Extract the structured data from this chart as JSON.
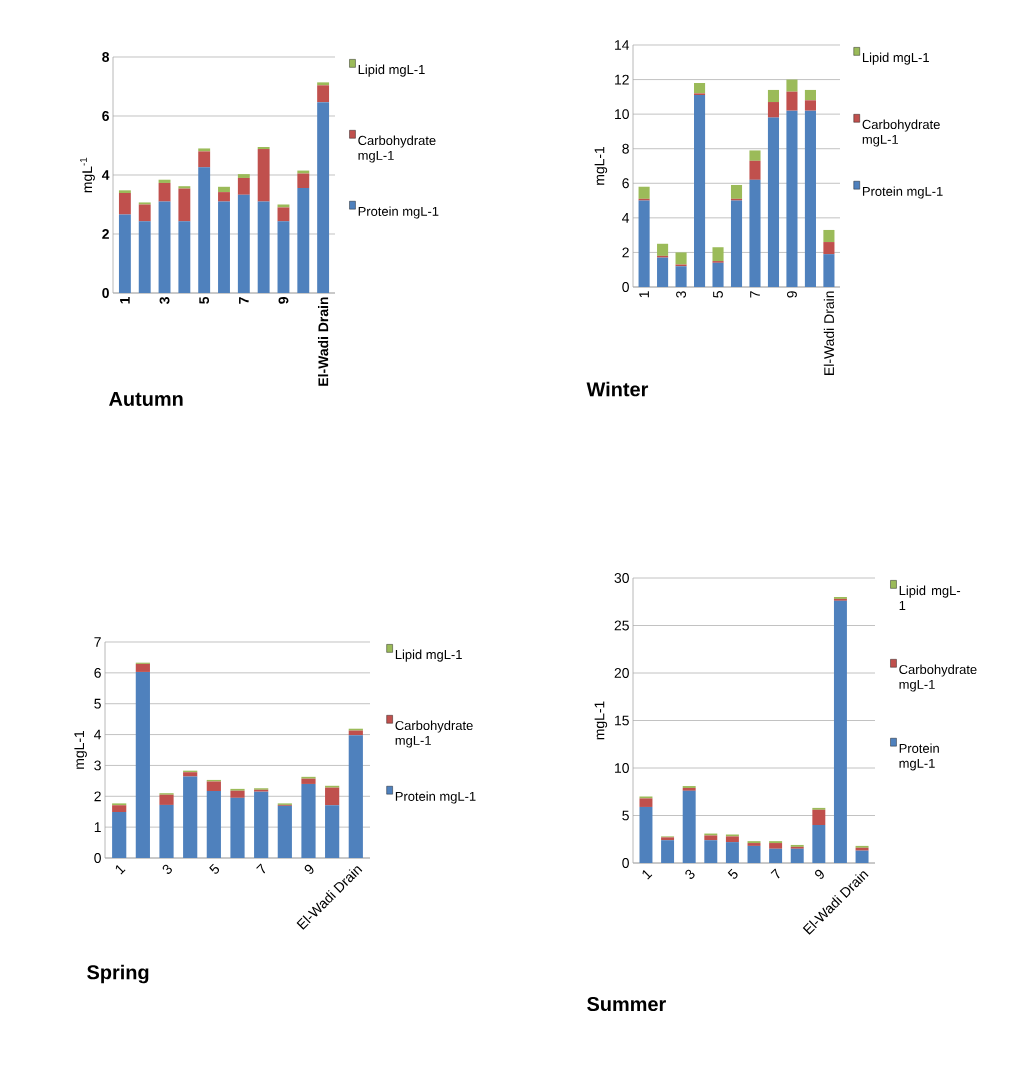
{
  "chart_data": [
    {
      "type": "bar",
      "stacked": true,
      "title": "Autumn",
      "ylabel": "mgL$^{-1}$",
      "categories": [
        "1",
        null,
        "3",
        null,
        "5",
        null,
        "7",
        null,
        "9",
        null,
        "El-Wadi Drain"
      ],
      "ylim": [
        0,
        8
      ],
      "yticks": [
        0,
        2,
        4,
        6,
        8
      ],
      "grid": "y",
      "legend": "right",
      "series": [
        {
          "name": "Protein mgL-1",
          "color": "#4f81bd",
          "values": [
            2.66,
            2.43,
            3.1,
            2.43,
            4.26,
            3.1,
            3.33,
            3.1,
            2.43,
            3.56,
            6.47
          ]
        },
        {
          "name": "Carbohydrate mgL-1",
          "color": "#c0504d",
          "values": [
            0.73,
            0.57,
            0.63,
            1.11,
            0.54,
            0.32,
            0.57,
            1.78,
            0.47,
            0.49,
            0.57
          ]
        },
        {
          "name": "Lipid mgL-1",
          "color": "#9bbb59",
          "values": [
            0.09,
            0.07,
            0.11,
            0.08,
            0.1,
            0.18,
            0.13,
            0.07,
            0.1,
            0.1,
            0.1
          ]
        }
      ]
    },
    {
      "type": "bar",
      "stacked": true,
      "title": "Winter",
      "ylabel": "mgL-1",
      "categories": [
        "1",
        null,
        "3",
        null,
        "5",
        null,
        "7",
        null,
        "9",
        null,
        "El-Wadi Drain"
      ],
      "ylim": [
        0,
        14
      ],
      "yticks": [
        0,
        2,
        4,
        6,
        8,
        10,
        12,
        14
      ],
      "grid": "y",
      "legend": "right",
      "series": [
        {
          "name": "Protein mgL-1",
          "color": "#4f81bd",
          "values": [
            5.0,
            1.7,
            1.2,
            11.1,
            1.4,
            5.0,
            6.2,
            9.8,
            10.2,
            10.2,
            1.9
          ]
        },
        {
          "name": "Carbohydrate mgL-1",
          "color": "#c0504d",
          "values": [
            0.1,
            0.1,
            0.1,
            0.1,
            0.1,
            0.1,
            1.1,
            0.9,
            1.1,
            0.6,
            0.7
          ]
        },
        {
          "name": "Lipid mgL-1",
          "color": "#9bbb59",
          "values": [
            0.7,
            0.7,
            0.7,
            0.6,
            0.8,
            0.8,
            0.6,
            0.7,
            0.7,
            0.6,
            0.7
          ]
        }
      ]
    },
    {
      "type": "bar",
      "stacked": true,
      "title": "Spring",
      "ylabel": "mgL-1",
      "categories": [
        "1",
        null,
        "3",
        null,
        "5",
        null,
        "7",
        null,
        "9",
        null,
        "El-Wadi Drain"
      ],
      "ylim": [
        0,
        7
      ],
      "yticks": [
        0,
        1,
        2,
        3,
        4,
        5,
        6,
        7
      ],
      "grid": "y",
      "legend": "right",
      "series": [
        {
          "name": "Protein mgL-1",
          "color": "#4f81bd",
          "values": [
            1.49,
            6.03,
            1.72,
            2.64,
            2.17,
            1.95,
            2.15,
            1.69,
            2.4,
            1.71,
            3.98
          ]
        },
        {
          "name": "Carbohydrate mgL-1",
          "color": "#c0504d",
          "values": [
            0.22,
            0.26,
            0.33,
            0.14,
            0.31,
            0.23,
            0.06,
            0.03,
            0.17,
            0.57,
            0.15
          ]
        },
        {
          "name": "Lipid mgL-1",
          "color": "#9bbb59",
          "values": [
            0.06,
            0.04,
            0.05,
            0.05,
            0.05,
            0.06,
            0.05,
            0.05,
            0.06,
            0.06,
            0.06
          ]
        }
      ]
    },
    {
      "type": "bar",
      "stacked": true,
      "title": "Summer",
      "ylabel": "mgL-1",
      "categories": [
        "1",
        null,
        "3",
        null,
        "5",
        null,
        "7",
        null,
        "9",
        null,
        "El-Wadi Drain"
      ],
      "ylim": [
        0,
        30
      ],
      "yticks": [
        0,
        5,
        10,
        15,
        20,
        25,
        30
      ],
      "grid": "y",
      "legend": "right",
      "series": [
        {
          "name": "Protein mgL-1",
          "color": "#4f81bd",
          "values": [
            5.9,
            2.4,
            7.6,
            2.4,
            2.2,
            1.8,
            1.5,
            1.5,
            4.0,
            27.6,
            1.3
          ]
        },
        {
          "name": "Carbohydrate mgL-1",
          "color": "#c0504d",
          "values": [
            0.9,
            0.3,
            0.3,
            0.5,
            0.6,
            0.3,
            0.6,
            0.2,
            1.6,
            0.2,
            0.3
          ]
        },
        {
          "name": "Lipid mgL-1",
          "color": "#9bbb59",
          "values": [
            0.2,
            0.1,
            0.2,
            0.2,
            0.2,
            0.2,
            0.2,
            0.2,
            0.2,
            0.2,
            0.2
          ]
        }
      ]
    }
  ]
}
